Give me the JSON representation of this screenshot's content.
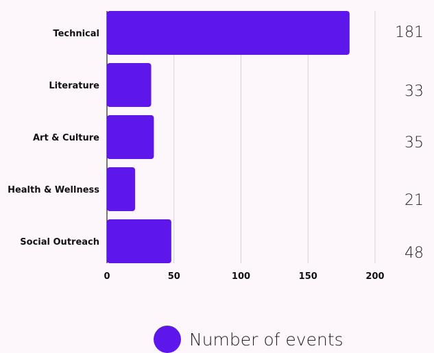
{
  "chart_data": {
    "type": "bar",
    "orientation": "horizontal",
    "categories": [
      "Technical",
      "Literature",
      "Art & Culture",
      "Health & Wellness",
      "Social Outreach"
    ],
    "category_labels": [
      "Technical",
      "Literature ",
      "Art & Culture",
      "Health & Wellness",
      "Social Outreach"
    ],
    "series": [
      {
        "name": "Number of events",
        "values": [
          181,
          33,
          35,
          21,
          48
        ]
      }
    ],
    "value_labels": [
      "181",
      "33",
      "35",
      "21",
      "48"
    ],
    "xlim": [
      0,
      200
    ],
    "x_ticks": [
      0,
      50,
      100,
      150,
      200
    ],
    "grid": "vertical",
    "legend": "bottom-center",
    "bar_color": "#5e17eb"
  }
}
